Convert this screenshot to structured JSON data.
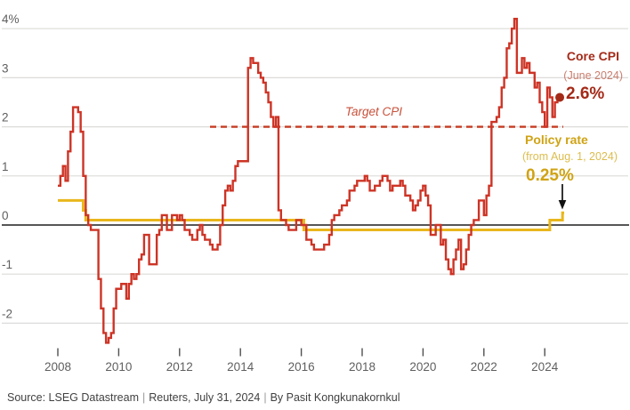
{
  "colors": {
    "background": "#ffffff",
    "core_cpi_line": "#cd3426",
    "core_cpi_text": "#a42a18",
    "core_cpi_subtext": "#c97f6f",
    "policy_line": "#e9b71c",
    "policy_text": "#d0a314",
    "policy_subtext": "#dcbd4e",
    "target_line": "#c63a22",
    "target_text": "#c8503a",
    "grid": "#dcdbd9",
    "zero_axis": "#1f1f1f",
    "tick": "#4f4f4f",
    "axis_text": "#5f5f5f",
    "source_text": "#414141",
    "separator": "#9a9a9a",
    "arrow": "#111111"
  },
  "annotations": {
    "target_cpi": "Target CPI",
    "core_cpi": {
      "title": "Core CPI",
      "subtitle": "(June 2024)",
      "value": "2.6%"
    },
    "policy_rate": {
      "title": "Policy rate",
      "subtitle": "(from Aug. 1, 2024)",
      "value": "0.25%"
    }
  },
  "footer": {
    "source": "Source: LSEG Datastream",
    "credit": "Reuters, July 31, 2024",
    "byline": "By Pasit Kongkunakornkul",
    "separator": "|"
  },
  "chart_data": {
    "type": "line",
    "title": "",
    "xlabel": "",
    "ylabel": "%",
    "x_range": {
      "start": "2008-01",
      "end": "2024-09"
    },
    "ylim": [
      -2.6,
      4.45
    ],
    "grid": true,
    "y_axis_labels": [
      {
        "v": 4,
        "label": "4%"
      },
      {
        "v": 3,
        "label": "3"
      },
      {
        "v": 2,
        "label": "2"
      },
      {
        "v": 1,
        "label": "1"
      },
      {
        "v": 0,
        "label": "0"
      },
      {
        "v": -1,
        "label": "-1"
      },
      {
        "v": -2,
        "label": "-2"
      }
    ],
    "x_axis_years": [
      2008,
      2010,
      2012,
      2014,
      2016,
      2018,
      2020,
      2022,
      2024
    ],
    "reference_line": {
      "label": "Target CPI",
      "value": 2,
      "from": "2013-01",
      "to": "2024-09",
      "style": "dashed"
    },
    "series": [
      {
        "name": "Core CPI",
        "unit": "% year-on-year",
        "render": "step",
        "frequency": "monthly",
        "start": "2008-01",
        "end": "2024-06",
        "last_value_label": "2.6%",
        "values": [
          0.8,
          1.0,
          1.2,
          0.9,
          1.5,
          1.9,
          2.4,
          2.4,
          2.3,
          1.9,
          1.0,
          0.2,
          0.0,
          -0.1,
          -0.1,
          -0.1,
          -1.1,
          -1.7,
          -2.2,
          -2.4,
          -2.3,
          -2.2,
          -1.7,
          -1.3,
          -1.3,
          -1.2,
          -1.2,
          -1.5,
          -1.2,
          -1.0,
          -1.1,
          -1.0,
          -0.7,
          -0.6,
          -0.2,
          -0.2,
          -0.8,
          -0.8,
          -0.8,
          -0.2,
          -0.1,
          0.2,
          0.2,
          -0.1,
          -0.1,
          0.2,
          0.2,
          0.1,
          0.2,
          0.1,
          -0.1,
          -0.1,
          -0.2,
          -0.3,
          -0.3,
          -0.1,
          0.0,
          -0.2,
          -0.3,
          -0.3,
          -0.4,
          -0.5,
          -0.5,
          -0.4,
          0.0,
          0.4,
          0.7,
          0.8,
          0.7,
          0.9,
          1.2,
          1.3,
          1.3,
          1.3,
          1.3,
          3.2,
          3.4,
          3.3,
          3.3,
          3.1,
          3.0,
          2.9,
          2.7,
          2.5,
          2.2,
          2.0,
          2.2,
          0.3,
          0.1,
          0.1,
          0.0,
          -0.1,
          -0.1,
          -0.1,
          0.1,
          0.1,
          0.0,
          0.0,
          -0.3,
          -0.3,
          -0.4,
          -0.5,
          -0.5,
          -0.5,
          -0.5,
          -0.4,
          -0.4,
          -0.2,
          0.1,
          0.2,
          0.2,
          0.3,
          0.4,
          0.4,
          0.5,
          0.7,
          0.7,
          0.8,
          0.9,
          0.9,
          0.9,
          1.0,
          0.9,
          0.7,
          0.7,
          0.8,
          0.8,
          0.9,
          1.0,
          1.0,
          0.9,
          0.7,
          0.8,
          0.8,
          0.8,
          0.9,
          0.8,
          0.6,
          0.6,
          0.5,
          0.3,
          0.4,
          0.5,
          0.7,
          0.8,
          0.6,
          0.4,
          -0.2,
          -0.2,
          0.0,
          0.0,
          -0.4,
          -0.3,
          -0.7,
          -0.9,
          -1.0,
          -0.7,
          -0.5,
          -0.3,
          -0.9,
          -0.8,
          -0.5,
          -0.2,
          0.0,
          0.1,
          0.1,
          0.5,
          0.5,
          0.2,
          0.6,
          0.8,
          2.1,
          2.1,
          2.2,
          2.4,
          2.8,
          3.0,
          3.6,
          3.7,
          4.0,
          4.2,
          3.1,
          3.1,
          3.4,
          3.2,
          3.3,
          3.1,
          3.1,
          2.8,
          2.9,
          2.5,
          2.3,
          2.0,
          2.8,
          2.6,
          2.2,
          2.5,
          2.6
        ]
      },
      {
        "name": "Policy rate",
        "unit": "%",
        "render": "step",
        "last_value_label": "0.25%",
        "points": [
          [
            "2008-01",
            0.5
          ],
          [
            "2008-11",
            0.3
          ],
          [
            "2008-12",
            0.1
          ],
          [
            "2016-02",
            -0.1
          ],
          [
            "2024-03",
            0.1
          ],
          [
            "2024-08",
            0.25
          ]
        ]
      }
    ],
    "legend_position": "annotations-right"
  }
}
